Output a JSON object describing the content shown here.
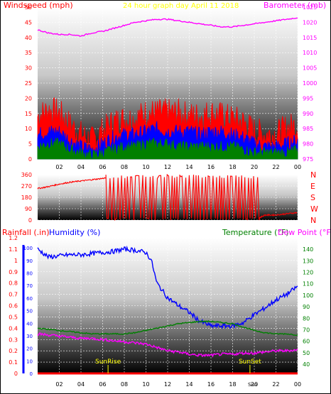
{
  "colors": {
    "wind_gust": "#ff0000",
    "wind_avg": "#0000ff",
    "wind_low": "#008000",
    "barometer": "#ff00ff",
    "direction": "#ff0000",
    "humidity": "#0000ff",
    "temperature": "#008000",
    "dewpoint": "#ff00ff",
    "rainfall": "#ff0000",
    "title": "#ffff00",
    "grid": "#ffffff"
  },
  "chart_data": [
    {
      "type": "line",
      "title": "24 hour graph day   April 11 2018",
      "ylabel": "Windspeed (mph)",
      "y2label": "Barometer (mb)",
      "ylim": [
        0,
        50
      ],
      "y2lim": [
        975,
        1025
      ],
      "yticks": [
        "0",
        "5",
        "10",
        "15",
        "20",
        "25",
        "30",
        "35",
        "40",
        "45",
        "50"
      ],
      "y2ticks": [
        "975",
        "980",
        "985",
        "990",
        "995",
        "1000",
        "1005",
        "1010",
        "1015",
        "1020",
        "1025"
      ],
      "xticks": [
        "02",
        "04",
        "06",
        "08",
        "10",
        "12",
        "14",
        "16",
        "18",
        "20",
        "22",
        "00"
      ],
      "xlim": [
        0,
        24
      ],
      "grid": true,
      "series": [
        {
          "key": "gust",
          "x": [
            0,
            1,
            2,
            3,
            4,
            5,
            6,
            7,
            8,
            9,
            10,
            11,
            12,
            13,
            14,
            15,
            16,
            17,
            18,
            19,
            20,
            21,
            22,
            23,
            24
          ],
          "values": [
            14,
            16,
            15,
            11,
            8,
            6,
            9,
            12,
            13,
            13,
            15,
            15,
            15,
            15,
            14,
            14,
            15,
            14,
            13,
            12,
            9,
            8,
            8,
            10,
            11
          ]
        },
        {
          "key": "avg",
          "x": [
            0,
            1,
            2,
            3,
            4,
            5,
            6,
            7,
            8,
            9,
            10,
            11,
            12,
            13,
            14,
            15,
            16,
            17,
            18,
            19,
            20,
            21,
            22,
            23,
            24
          ],
          "values": [
            8,
            9,
            9,
            6,
            4,
            3,
            5,
            7,
            8,
            8,
            9,
            10,
            9,
            9,
            9,
            8,
            9,
            9,
            8,
            7,
            5,
            4,
            4,
            5,
            6
          ]
        },
        {
          "key": "low",
          "x": [
            0,
            1,
            2,
            3,
            4,
            5,
            6,
            7,
            8,
            9,
            10,
            11,
            12,
            13,
            14,
            15,
            16,
            17,
            18,
            19,
            20,
            21,
            22,
            23,
            24
          ],
          "values": [
            4,
            5,
            5,
            3,
            2,
            1,
            2,
            3,
            4,
            4,
            5,
            5,
            5,
            4,
            4,
            4,
            4,
            4,
            4,
            3,
            2,
            2,
            2,
            2,
            3
          ]
        },
        {
          "key": "baro",
          "x": [
            0,
            1,
            2,
            3,
            4,
            5,
            6,
            7,
            8,
            9,
            10,
            11,
            12,
            13,
            14,
            15,
            16,
            17,
            18,
            19,
            20,
            21,
            22,
            23,
            24
          ],
          "values": [
            1017.5,
            1016.5,
            1016,
            1016,
            1015.5,
            1016.5,
            1017,
            1018,
            1019,
            1020,
            1020.5,
            1021,
            1021,
            1020.5,
            1020,
            1019.5,
            1019,
            1018.5,
            1018.5,
            1019,
            1019.5,
            1020,
            1020.5,
            1021,
            1021.5
          ]
        }
      ]
    },
    {
      "type": "line",
      "ylim": [
        0,
        360
      ],
      "yticks": [
        "0",
        "90",
        "180",
        "270",
        "360"
      ],
      "y2ticks": [
        "N",
        "W",
        "S",
        "E",
        "N"
      ],
      "grid": true,
      "series": [
        {
          "key": "direction",
          "x": [
            0,
            1,
            2,
            3,
            4,
            5,
            6,
            6.3,
            6.5,
            7,
            8,
            9,
            10,
            11,
            12,
            13,
            14,
            15,
            16,
            17,
            18,
            19,
            20,
            21,
            22,
            23,
            24
          ],
          "values": [
            250,
            265,
            285,
            300,
            310,
            320,
            330,
            340,
            10,
            340,
            10,
            340,
            10,
            340,
            10,
            340,
            10,
            340,
            10,
            340,
            10,
            340,
            10,
            40,
            40,
            50,
            60
          ]
        }
      ]
    },
    {
      "type": "line",
      "ylabel": "Rainfall (.in)",
      "ylabel2": "Humidity (%)",
      "y2label": "Temperature (°F)",
      "y2label2": "Dew Point (°F)",
      "ylim": [
        0,
        1.2
      ],
      "yticks": [
        "0",
        "0.1",
        "0.2",
        "0.3",
        "0.4",
        "0.5",
        "0.6",
        "0.7",
        "0.8",
        "0.9",
        "1",
        "1.1",
        "1.2"
      ],
      "humidity_ticks": [
        "0",
        "10",
        "20",
        "30",
        "40",
        "50",
        "60",
        "70",
        "80",
        "90",
        "100"
      ],
      "y2lim": [
        30,
        150
      ],
      "y2ticks": [
        "40",
        "50",
        "60",
        "70",
        "80",
        "90",
        "100",
        "110",
        "120",
        "130",
        "140"
      ],
      "xticks": [
        "02",
        "04",
        "06",
        "08",
        "10",
        "12",
        "14",
        "16",
        "18",
        "20",
        "22",
        "00"
      ],
      "xtick_overlay": "Sun",
      "annotations": [
        {
          "label": "SunRise",
          "x": 6.5
        },
        {
          "label": "SunSet",
          "x": 19.6
        }
      ],
      "grid": true,
      "series": [
        {
          "key": "humidity",
          "x": [
            0,
            1,
            2,
            3,
            4,
            5,
            6,
            7,
            8,
            9,
            10,
            10.5,
            11,
            12,
            13,
            14,
            15,
            16,
            17,
            18,
            19,
            20,
            21,
            22,
            23,
            24
          ],
          "values": [
            1.1,
            1.03,
            1.04,
            1.05,
            1.05,
            1.06,
            1.07,
            1.08,
            1.1,
            1.09,
            1.07,
            1.0,
            0.8,
            0.67,
            0.6,
            0.54,
            0.46,
            0.42,
            0.42,
            0.42,
            0.45,
            0.52,
            0.58,
            0.65,
            0.7,
            0.77
          ]
        },
        {
          "key": "temperature",
          "x": [
            0,
            1,
            2,
            3,
            4,
            5,
            6,
            7,
            8,
            9,
            10,
            11,
            12,
            13,
            14,
            15,
            16,
            17,
            18,
            19,
            20,
            21,
            22,
            23,
            24
          ],
          "values": [
            0.4,
            0.39,
            0.38,
            0.37,
            0.36,
            0.35,
            0.35,
            0.35,
            0.35,
            0.36,
            0.38,
            0.4,
            0.42,
            0.44,
            0.45,
            0.46,
            0.46,
            0.45,
            0.44,
            0.41,
            0.38,
            0.36,
            0.35,
            0.35,
            0.34
          ]
        },
        {
          "key": "dewpoint",
          "x": [
            0,
            1,
            2,
            3,
            4,
            5,
            6,
            7,
            8,
            9,
            10,
            11,
            12,
            13,
            14,
            15,
            16,
            17,
            18,
            19,
            20,
            21,
            22,
            23,
            24
          ],
          "values": [
            0.35,
            0.34,
            0.33,
            0.32,
            0.31,
            0.31,
            0.3,
            0.29,
            0.28,
            0.27,
            0.26,
            0.23,
            0.2,
            0.19,
            0.17,
            0.16,
            0.16,
            0.17,
            0.17,
            0.18,
            0.18,
            0.19,
            0.2,
            0.2,
            0.21
          ]
        },
        {
          "key": "rain",
          "x": [
            0,
            24
          ],
          "values": [
            0,
            0
          ]
        }
      ]
    }
  ]
}
